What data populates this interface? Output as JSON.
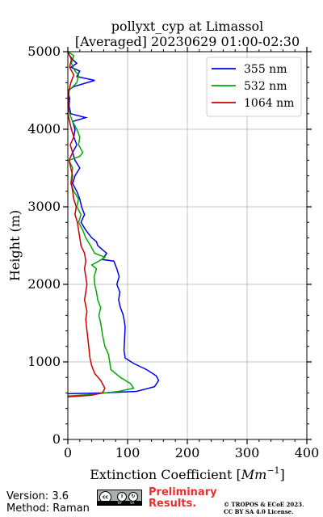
{
  "chart_data": {
    "type": "line",
    "title": "pollyxt_cyp at Limassol",
    "subtitle": "[Averaged] 20230629 01:00-02:30",
    "xlabel": "Extinction Coefficient [Mm^-1]",
    "xlabel_prefix": "Extinction Coefficient [",
    "xlabel_unit": "Mm",
    "xlabel_exp": "−1",
    "xlabel_suffix": "]",
    "ylabel": "Height (m)",
    "xlim": [
      0,
      400
    ],
    "ylim": [
      0,
      5000
    ],
    "x_ticks": [
      0,
      100,
      200,
      300,
      400
    ],
    "y_ticks": [
      0,
      1000,
      2000,
      3000,
      4000,
      5000
    ],
    "grid": true,
    "legend_position": "top-right",
    "series": [
      {
        "name": "355 nm",
        "color": "#0000ee",
        "points": [
          [
            0,
            590
          ],
          [
            60,
            600
          ],
          [
            115,
            620
          ],
          [
            145,
            680
          ],
          [
            152,
            760
          ],
          [
            148,
            820
          ],
          [
            132,
            900
          ],
          [
            110,
            980
          ],
          [
            96,
            1050
          ],
          [
            94,
            1150
          ],
          [
            95,
            1300
          ],
          [
            96,
            1450
          ],
          [
            94,
            1550
          ],
          [
            92,
            1620
          ],
          [
            88,
            1700
          ],
          [
            85,
            1800
          ],
          [
            87,
            1900
          ],
          [
            82,
            2000
          ],
          [
            86,
            2100
          ],
          [
            82,
            2200
          ],
          [
            77,
            2300
          ],
          [
            58,
            2320
          ],
          [
            65,
            2400
          ],
          [
            50,
            2500
          ],
          [
            48,
            2550
          ],
          [
            40,
            2600
          ],
          [
            30,
            2700
          ],
          [
            22,
            2800
          ],
          [
            28,
            2900
          ],
          [
            23,
            3000
          ],
          [
            20,
            3100
          ],
          [
            15,
            3200
          ],
          [
            8,
            3300
          ],
          [
            12,
            3400
          ],
          [
            20,
            3500
          ],
          [
            12,
            3600
          ],
          [
            8,
            3700
          ],
          [
            15,
            3800
          ],
          [
            10,
            3900
          ],
          [
            12,
            4000
          ],
          [
            8,
            4100
          ],
          [
            30,
            4150
          ],
          [
            5,
            4200
          ],
          [
            2,
            4300
          ],
          [
            3,
            4400
          ],
          [
            0,
            4500
          ],
          [
            10,
            4550
          ],
          [
            45,
            4630
          ],
          [
            15,
            4680
          ],
          [
            20,
            4750
          ],
          [
            5,
            4800
          ],
          [
            15,
            4850
          ],
          [
            8,
            4900
          ],
          [
            3,
            4950
          ],
          [
            0,
            5000
          ]
        ]
      },
      {
        "name": "532 nm",
        "color": "#00aa00",
        "points": [
          [
            0,
            560
          ],
          [
            40,
            580
          ],
          [
            85,
            620
          ],
          [
            110,
            660
          ],
          [
            105,
            720
          ],
          [
            88,
            800
          ],
          [
            72,
            900
          ],
          [
            70,
            1000
          ],
          [
            68,
            1100
          ],
          [
            62,
            1200
          ],
          [
            58,
            1350
          ],
          [
            55,
            1500
          ],
          [
            52,
            1600
          ],
          [
            55,
            1700
          ],
          [
            50,
            1800
          ],
          [
            48,
            1900
          ],
          [
            45,
            2000
          ],
          [
            44,
            2100
          ],
          [
            48,
            2200
          ],
          [
            40,
            2250
          ],
          [
            52,
            2300
          ],
          [
            62,
            2350
          ],
          [
            45,
            2400
          ],
          [
            38,
            2500
          ],
          [
            30,
            2600
          ],
          [
            25,
            2700
          ],
          [
            18,
            2800
          ],
          [
            22,
            2900
          ],
          [
            15,
            3000
          ],
          [
            18,
            3100
          ],
          [
            10,
            3200
          ],
          [
            5,
            3300
          ],
          [
            8,
            3500
          ],
          [
            2,
            3600
          ],
          [
            20,
            3650
          ],
          [
            25,
            3700
          ],
          [
            18,
            3800
          ],
          [
            20,
            3900
          ],
          [
            15,
            4000
          ],
          [
            8,
            4100
          ],
          [
            3,
            4200
          ],
          [
            0,
            4300
          ],
          [
            2,
            4500
          ],
          [
            15,
            4600
          ],
          [
            18,
            4700
          ],
          [
            12,
            4750
          ],
          [
            6,
            4850
          ],
          [
            10,
            4950
          ],
          [
            0,
            5000
          ]
        ]
      },
      {
        "name": "1064 nm",
        "color": "#cc0000",
        "points": [
          [
            0,
            550
          ],
          [
            40,
            570
          ],
          [
            58,
            600
          ],
          [
            62,
            660
          ],
          [
            55,
            760
          ],
          [
            45,
            850
          ],
          [
            40,
            950
          ],
          [
            37,
            1050
          ],
          [
            35,
            1200
          ],
          [
            32,
            1400
          ],
          [
            30,
            1550
          ],
          [
            32,
            1650
          ],
          [
            28,
            1800
          ],
          [
            30,
            1900
          ],
          [
            32,
            2000
          ],
          [
            30,
            2100
          ],
          [
            28,
            2200
          ],
          [
            30,
            2300
          ],
          [
            28,
            2400
          ],
          [
            22,
            2500
          ],
          [
            20,
            2600
          ],
          [
            18,
            2700
          ],
          [
            16,
            2800
          ],
          [
            12,
            2900
          ],
          [
            14,
            3000
          ],
          [
            10,
            3100
          ],
          [
            8,
            3200
          ],
          [
            6,
            3300
          ],
          [
            8,
            3400
          ],
          [
            5,
            3500
          ],
          [
            2,
            3600
          ],
          [
            8,
            3700
          ],
          [
            4,
            3800
          ],
          [
            10,
            3900
          ],
          [
            6,
            4000
          ],
          [
            3,
            4100
          ],
          [
            0,
            4200
          ],
          [
            2,
            4500
          ],
          [
            5,
            4600
          ],
          [
            10,
            4700
          ],
          [
            3,
            4800
          ],
          [
            6,
            4900
          ],
          [
            0,
            5000
          ]
        ]
      }
    ]
  },
  "footer": {
    "version": "Version: 3.6",
    "method": "Method: Raman",
    "preliminary_line1": "Preliminary",
    "preliminary_line2": "Results.",
    "copyright_line1": "© TROPOS & ECoE 2023.",
    "copyright_line2": "CC BY SA 4.0 License."
  },
  "license_badge": {
    "cc": "cc",
    "by": "BY",
    "sa": "SA"
  }
}
